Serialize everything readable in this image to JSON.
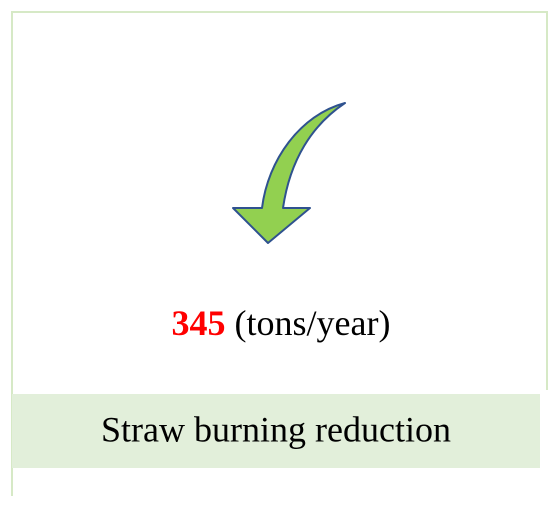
{
  "value": {
    "number": 345,
    "unit": "(tons/year)"
  },
  "label": "Straw burning reduction"
}
